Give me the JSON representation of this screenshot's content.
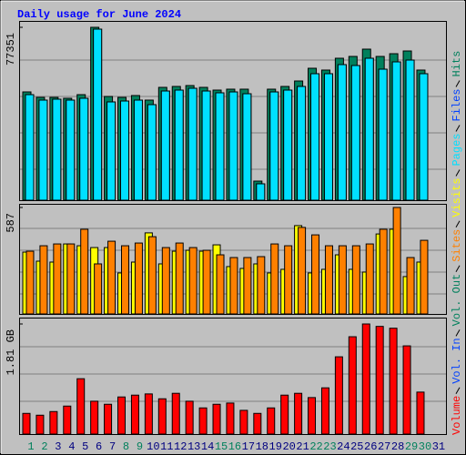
{
  "chart_data": [
    {
      "type": "bar",
      "title": "Daily usage for June 2024",
      "ylim": [
        0,
        77351
      ],
      "yticks": [
        77351
      ],
      "series": [
        {
          "name": "Hits",
          "color": "#00805c",
          "values": [
            48445,
            46000,
            46000,
            45600,
            47220,
            77351,
            46410,
            46000,
            46820,
            44780,
            50480,
            50890,
            51290,
            50480,
            49260,
            49670,
            49670,
            8550,
            49670,
            50890,
            53330,
            59030,
            58220,
            63510,
            64320,
            67580,
            64320,
            65540,
            66760,
            58220,
            0
          ]
        },
        {
          "name": "Files",
          "color": "#0040ff",
          "values": [
            47220,
            44780,
            45190,
            44780,
            45600,
            76530,
            43970,
            44370,
            44780,
            42750,
            48850,
            49260,
            50070,
            48850,
            48040,
            48440,
            47630,
            7330,
            48440,
            49260,
            50890,
            56590,
            56590,
            60660,
            60250,
            63510,
            58620,
            61880,
            62690,
            56590,
            0
          ]
        },
        {
          "name": "Pages",
          "color": "#00e0ff",
          "values": [
            47220,
            44780,
            45190,
            44780,
            45600,
            76530,
            43970,
            44370,
            44780,
            42750,
            48850,
            49260,
            50070,
            48850,
            48040,
            48440,
            47630,
            7330,
            48440,
            49260,
            50890,
            56590,
            56590,
            60660,
            60250,
            63510,
            58620,
            61880,
            62690,
            56590,
            0
          ]
        }
      ]
    },
    {
      "type": "bar",
      "ylim": [
        0,
        587
      ],
      "yticks": [
        587
      ],
      "series": [
        {
          "name": "Visits",
          "color": "#ffff00",
          "values": [
            341,
            291,
            286,
            386,
            376,
            366,
            366,
            226,
            286,
            447,
            276,
            346,
            351,
            346,
            381,
            261,
            251,
            276,
            226,
            246,
            487,
            226,
            246,
            326,
            246,
            231,
            441,
            467,
            206,
            286,
            0
          ]
        },
        {
          "name": "Sites",
          "color": "#ff8000",
          "values": [
            346,
            376,
            386,
            386,
            467,
            276,
            401,
            376,
            391,
            426,
            366,
            391,
            366,
            351,
            326,
            311,
            311,
            316,
            386,
            376,
            477,
            436,
            376,
            376,
            376,
            386,
            467,
            587,
            311,
            406,
            0
          ]
        }
      ]
    },
    {
      "type": "bar",
      "ylim": [
        0,
        1.81
      ],
      "yticks": [
        {
          "value": 1.81,
          "label": "1.81 GB"
        }
      ],
      "categories": [
        "1",
        "2",
        "3",
        "4",
        "5",
        "6",
        "7",
        "8",
        "9",
        "10",
        "11",
        "12",
        "13",
        "14",
        "15",
        "16",
        "17",
        "18",
        "19",
        "20",
        "21",
        "22",
        "23",
        "24",
        "25",
        "26",
        "27",
        "28",
        "29",
        "30",
        "31"
      ],
      "category_colors": [
        "#00805c",
        "#00805c",
        "#000080",
        "#000080",
        "#000080",
        "#000080",
        "#000080",
        "#00805c",
        "#00805c",
        "#000080",
        "#000080",
        "#000080",
        "#000080",
        "#000080",
        "#00805c",
        "#00805c",
        "#000080",
        "#000080",
        "#000080",
        "#000080",
        "#000080",
        "#00805c",
        "#00805c",
        "#000080",
        "#000080",
        "#000080",
        "#000080",
        "#000080",
        "#00805c",
        "#00805c",
        "#000080"
      ],
      "series": [
        {
          "name": "Vol. Out",
          "color": "#00805c",
          "values": [
            0,
            0,
            0,
            0,
            0,
            0,
            0,
            0,
            0,
            0,
            0,
            0,
            0,
            0,
            0,
            0,
            0,
            0,
            0,
            0,
            0,
            0,
            0,
            0,
            0,
            0,
            0,
            0,
            0,
            0,
            0
          ]
        },
        {
          "name": "Vol. In",
          "color": "#0040ff",
          "values": [
            0,
            0,
            0,
            0,
            0,
            0,
            0,
            0,
            0,
            0,
            0,
            0,
            0,
            0,
            0,
            0,
            0,
            0,
            0,
            0,
            0,
            0,
            0,
            0,
            0,
            0,
            0,
            0,
            0,
            0,
            0
          ]
        },
        {
          "name": "Volume",
          "color": "#ff0000",
          "values": [
            0.34,
            0.31,
            0.37,
            0.46,
            0.91,
            0.54,
            0.49,
            0.61,
            0.64,
            0.66,
            0.58,
            0.67,
            0.54,
            0.43,
            0.49,
            0.51,
            0.39,
            0.34,
            0.43,
            0.64,
            0.67,
            0.6,
            0.76,
            1.27,
            1.6,
            1.81,
            1.77,
            1.74,
            1.45,
            0.69,
            0
          ]
        }
      ]
    }
  ]
}
